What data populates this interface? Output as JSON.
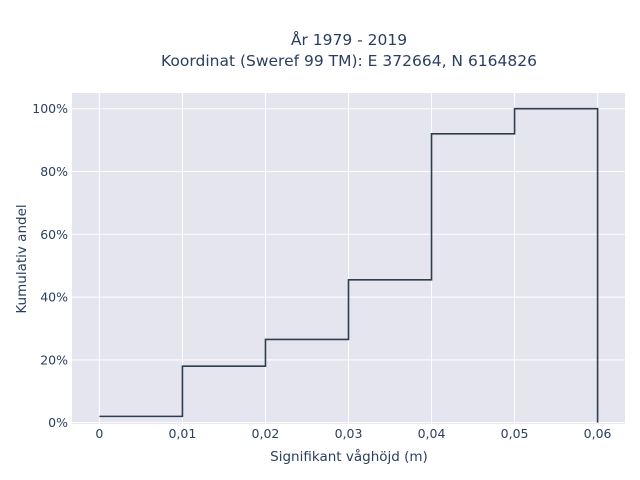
{
  "chart_data": {
    "type": "line",
    "step": true,
    "title_line1": "År 1979 - 2019",
    "title_line2": "Koordinat (Sweref 99 TM): E 372664, N 6164826",
    "xlabel": "Signifikant våghöjd (m)",
    "ylabel": "Kumulativ andel",
    "xlim": [
      -0.0033,
      0.0633
    ],
    "ylim": [
      -0.0043,
      1.05
    ],
    "x_ticks": [
      0,
      0.01,
      0.02,
      0.03,
      0.04,
      0.05,
      0.06
    ],
    "x_tick_labels": [
      "0",
      "0,01",
      "0,02",
      "0,03",
      "0,04",
      "0,05",
      "0,06"
    ],
    "y_ticks": [
      0,
      0.2,
      0.4,
      0.6,
      0.8,
      1.0
    ],
    "y_tick_labels": [
      "0%",
      "20%",
      "40%",
      "60%",
      "80%",
      "100%"
    ],
    "grid": true,
    "series": [
      {
        "color": "#2f3e4d",
        "x": [
          0,
          0.01,
          0.02,
          0.03,
          0.04,
          0.05,
          0.06
        ],
        "y": [
          0.02,
          0.18,
          0.265,
          0.455,
          0.92,
          1.0,
          1.0
        ]
      }
    ]
  },
  "colors": {
    "plot_bg": "#e5e5f0",
    "grid": "#ffffff",
    "line": "#2f3e4d"
  }
}
